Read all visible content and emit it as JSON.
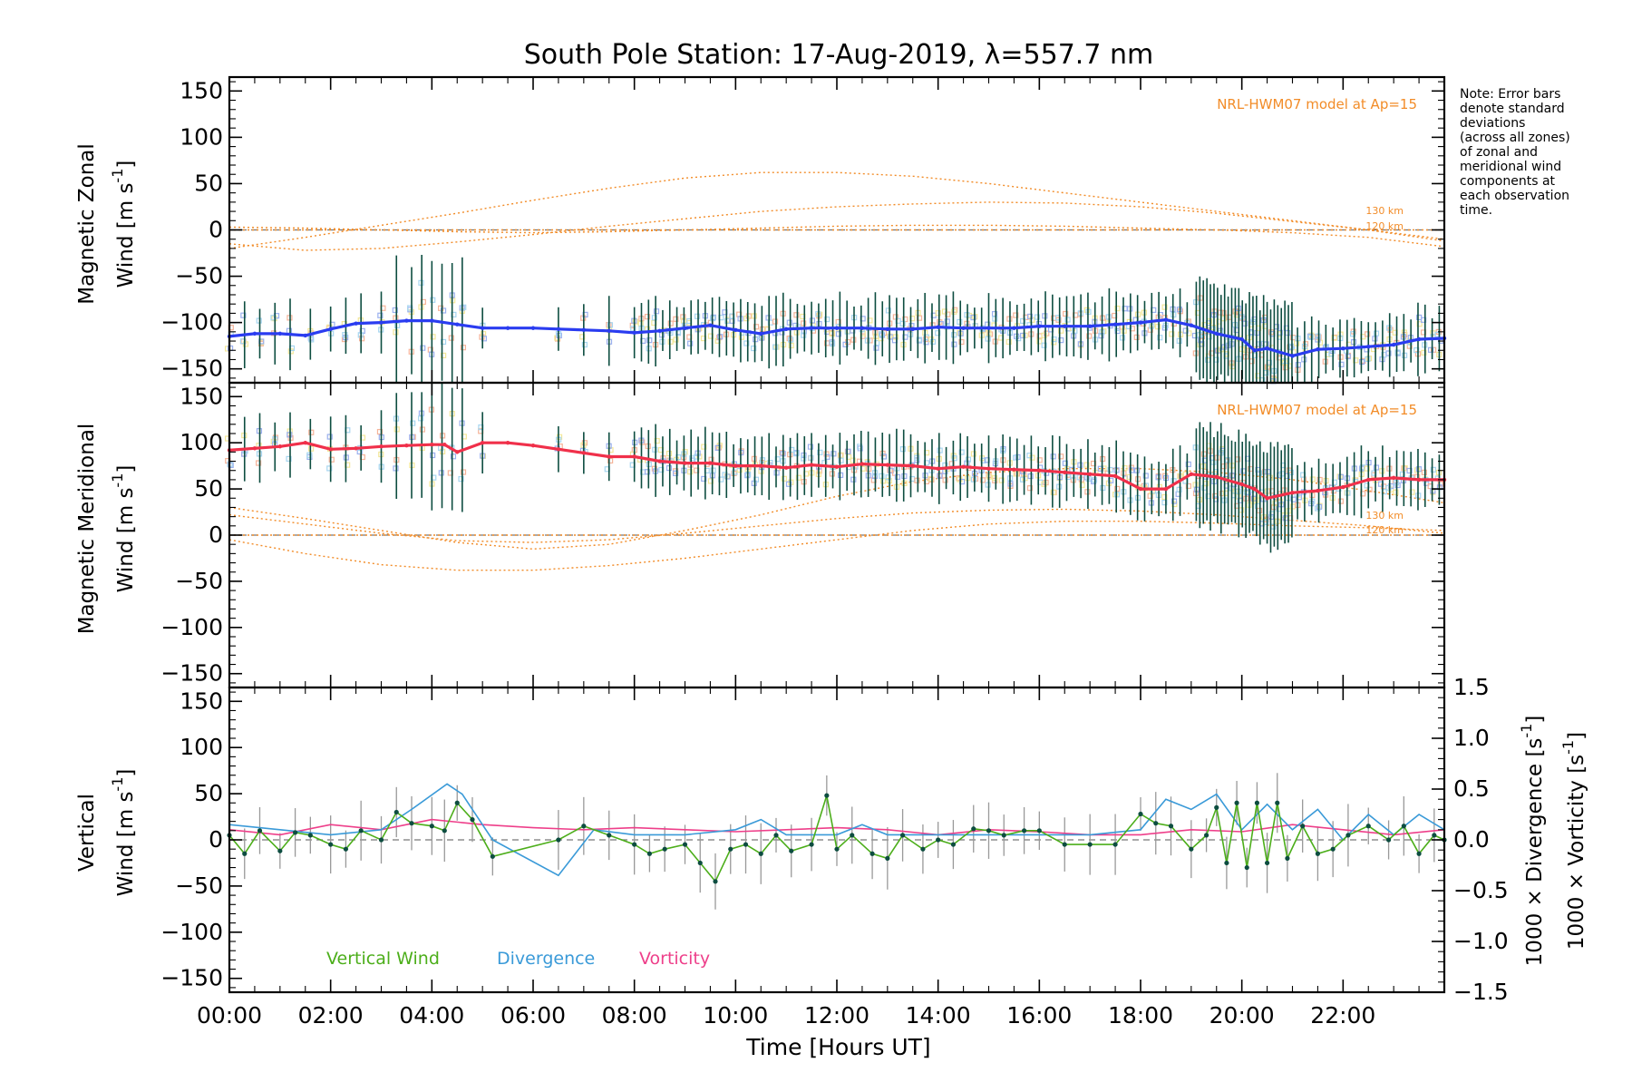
{
  "title": "South Pole Station: 17-Aug-2019, λ=557.7 nm",
  "note_lines": [
    "Note: Error bars",
    "denote standard",
    "deviations",
    "(across all zones)",
    "of zonal and",
    "meridional wind",
    "components at",
    "each observation",
    "time."
  ],
  "model_label": "NRL-HWM07 model at Ap=15",
  "altitude_labels": [
    "130 km",
    "120 km"
  ],
  "x_axis": {
    "label": "Time [Hours UT]",
    "ticks": [
      "00:00",
      "02:00",
      "04:00",
      "06:00",
      "08:00",
      "10:00",
      "12:00",
      "14:00",
      "16:00",
      "18:00",
      "20:00",
      "22:00"
    ],
    "range_hours": [
      0,
      24
    ]
  },
  "legend": {
    "vertical": "Vertical Wind",
    "divergence": "Divergence",
    "vorticity": "Vorticity"
  },
  "colors": {
    "zonal": "#2a3cf0",
    "meridional": "#f0304a",
    "vertical": "#4cae1a",
    "divergence": "#3a9ad8",
    "vorticity": "#ee3f8a",
    "model": "#f28c28",
    "error_bar": "#0d4d40"
  },
  "chart_data": [
    {
      "type": "line",
      "name": "zonal",
      "ylabel_line1": "Magnetic Zonal",
      "ylabel_line2": "Wind [m s",
      "ylabel_sup": "-1",
      "ylabel_close": "]",
      "yticks": [
        "150",
        "100",
        "50",
        "0",
        "−50",
        "−100",
        "−150"
      ],
      "ylim": [
        -165,
        165
      ],
      "series": {
        "x": [
          0,
          0.5,
          1,
          1.5,
          2,
          2.5,
          3,
          3.5,
          4,
          4.5,
          5,
          5.5,
          6,
          6.5,
          7,
          7.5,
          8,
          8.5,
          9,
          9.5,
          10,
          10.5,
          11,
          11.5,
          12,
          12.5,
          13,
          13.5,
          14,
          14.5,
          15,
          15.5,
          16,
          16.5,
          17,
          17.5,
          18,
          18.5,
          19,
          19.5,
          20,
          20.25,
          20.5,
          21,
          21.5,
          22,
          22.5,
          23,
          23.5,
          24
        ],
        "values": [
          -115,
          -112,
          -112,
          -114,
          -107,
          -101,
          -100,
          -98,
          -98,
          -102,
          -106,
          -106,
          -106,
          -107,
          -108,
          -109,
          -111,
          -109,
          -106,
          -103,
          -108,
          -112,
          -107,
          -106,
          -106,
          -106,
          -107,
          -107,
          -105,
          -106,
          -106,
          -106,
          -104,
          -104,
          -104,
          -102,
          -100,
          -97,
          -103,
          -112,
          -118,
          -130,
          -128,
          -136,
          -129,
          -128,
          -126,
          -124,
          -118,
          -117
        ]
      },
      "model_curves": [
        {
          "name": "a",
          "x": [
            0,
            1.5,
            3,
            4.5,
            6,
            7.5,
            9,
            10.5,
            12,
            13.5,
            15,
            16.5,
            18,
            19.5,
            21,
            22.5,
            24
          ],
          "values": [
            0,
            0,
            0,
            0,
            0,
            0,
            0,
            0,
            0,
            0,
            0,
            0,
            0,
            0,
            0,
            0,
            0
          ]
        },
        {
          "name": "b",
          "x": [
            0,
            1.5,
            3,
            4.5,
            6,
            7.5,
            9,
            10.5,
            12,
            13.5,
            15,
            16.5,
            18,
            19.5,
            21,
            22.5,
            24
          ],
          "values": [
            -20,
            -8,
            5,
            18,
            32,
            45,
            56,
            62,
            62,
            58,
            50,
            40,
            30,
            20,
            10,
            0,
            -12
          ]
        },
        {
          "name": "c",
          "x": [
            0,
            1.5,
            3,
            4.5,
            6,
            7.5,
            9,
            10.5,
            12,
            13.5,
            15,
            16.5,
            18,
            19.5,
            21,
            22.5,
            24
          ],
          "values": [
            -15,
            -22,
            -20,
            -13,
            -5,
            4,
            12,
            20,
            25,
            28,
            30,
            29,
            25,
            18,
            9,
            0,
            -10
          ]
        },
        {
          "name": "d",
          "x": [
            0,
            1.5,
            3,
            4.5,
            6,
            7.5,
            9,
            10.5,
            12,
            13.5,
            15,
            16.5,
            18,
            19.5,
            21,
            22.5,
            24
          ],
          "values": [
            3,
            2,
            0,
            -2,
            -3,
            -2,
            0,
            2,
            4,
            5,
            5,
            4,
            2,
            0,
            -3,
            -8,
            -18
          ]
        }
      ]
    },
    {
      "type": "line",
      "name": "meridional",
      "ylabel_line1": "Magnetic Meridional",
      "ylabel_line2": "Wind [m s",
      "ylabel_sup": "-1",
      "ylabel_close": "]",
      "yticks": [
        "150",
        "100",
        "50",
        "0",
        "−50",
        "−100",
        "−150"
      ],
      "ylim": [
        -165,
        165
      ],
      "series": {
        "x": [
          0,
          0.5,
          1,
          1.5,
          2,
          2.5,
          3,
          3.5,
          4,
          4.25,
          4.5,
          5,
          5.5,
          6,
          6.5,
          7,
          7.5,
          8,
          8.5,
          9,
          9.5,
          10,
          10.5,
          11,
          11.5,
          12,
          12.5,
          13,
          13.5,
          14,
          14.5,
          15,
          15.5,
          16,
          16.5,
          17,
          17.5,
          18,
          18.5,
          19,
          19.5,
          20,
          20.25,
          20.5,
          21,
          21.5,
          22,
          22.5,
          23,
          23.5,
          24
        ],
        "values": [
          92,
          94,
          96,
          100,
          93,
          94,
          96,
          97,
          98,
          98,
          90,
          100,
          100,
          97,
          93,
          89,
          85,
          85,
          80,
          78,
          78,
          75,
          75,
          73,
          76,
          74,
          77,
          76,
          75,
          72,
          74,
          72,
          71,
          70,
          68,
          66,
          64,
          50,
          50,
          66,
          63,
          55,
          50,
          40,
          46,
          48,
          52,
          60,
          62,
          60,
          60
        ]
      },
      "model_curves": [
        {
          "name": "a",
          "x": [
            0,
            1.5,
            3,
            4.5,
            6,
            7.5,
            9,
            10.5,
            12,
            13.5,
            15,
            16.5,
            18,
            19.5,
            21,
            22.5,
            24
          ],
          "values": [
            0,
            0,
            0,
            0,
            0,
            0,
            0,
            0,
            0,
            0,
            0,
            0,
            0,
            0,
            0,
            0,
            0
          ]
        },
        {
          "name": "b",
          "x": [
            0,
            1.5,
            3,
            4.5,
            6,
            7.5,
            9,
            10.5,
            12,
            13.5,
            15,
            16.5,
            18,
            19.5,
            21,
            22.5,
            24
          ],
          "values": [
            30,
            18,
            5,
            -8,
            -15,
            -10,
            5,
            22,
            42,
            58,
            68,
            72,
            72,
            68,
            60,
            48,
            35
          ]
        },
        {
          "name": "c",
          "x": [
            0,
            1.5,
            3,
            4.5,
            6,
            7.5,
            9,
            10.5,
            12,
            13.5,
            15,
            16.5,
            18,
            19.5,
            21,
            22.5,
            24
          ],
          "values": [
            -5,
            -20,
            -32,
            -38,
            -38,
            -33,
            -25,
            -15,
            -5,
            5,
            12,
            15,
            15,
            13,
            10,
            8,
            5
          ]
        },
        {
          "name": "d",
          "x": [
            0,
            1.5,
            3,
            4.5,
            6,
            7.5,
            9,
            10.5,
            12,
            13.5,
            15,
            16.5,
            18,
            19.5,
            21,
            22.5,
            24
          ],
          "values": [
            22,
            12,
            2,
            -6,
            -8,
            -5,
            2,
            10,
            18,
            24,
            27,
            28,
            26,
            22,
            16,
            10,
            2
          ]
        }
      ]
    },
    {
      "type": "line",
      "name": "vertical",
      "ylabel_left_line1": "Vertical",
      "ylabel_left_line2": "Wind [m s",
      "ylabel_left_sup": "-1",
      "ylabel_left_close": "]",
      "yticks": [
        "150",
        "100",
        "50",
        "0",
        "−50",
        "−100",
        "−150"
      ],
      "ylim": [
        -165,
        165
      ],
      "right_axis": {
        "ticks": [
          "1.5",
          "1.0",
          "0.5",
          "0.0",
          "−0.5",
          "−1.0",
          "−1.5"
        ],
        "range": [
          -1.5,
          1.5
        ],
        "label_div": "1000 × Divergence [s",
        "label_vort": "1000 × Vorticity [s",
        "sup": "-1",
        "close": "]"
      },
      "series": [
        {
          "name": "Vertical Wind",
          "x": [
            0,
            0.3,
            0.6,
            1,
            1.3,
            1.6,
            2,
            2.3,
            2.6,
            3,
            3.3,
            3.6,
            4,
            4.25,
            4.5,
            4.8,
            5.2,
            6.5,
            7,
            7.5,
            8,
            8.3,
            8.6,
            9,
            9.3,
            9.6,
            9.9,
            10.2,
            10.5,
            10.8,
            11.1,
            11.5,
            11.8,
            12,
            12.3,
            12.7,
            13,
            13.3,
            13.7,
            14,
            14.3,
            14.7,
            15,
            15.3,
            15.7,
            16,
            16.5,
            17,
            17.5,
            18,
            18.3,
            18.6,
            19,
            19.3,
            19.5,
            19.7,
            19.9,
            20.1,
            20.3,
            20.5,
            20.7,
            20.9,
            21.2,
            21.5,
            21.8,
            22.1,
            22.5,
            22.9,
            23.2,
            23.5,
            23.8,
            24
          ],
          "values": [
            5,
            -15,
            10,
            -12,
            8,
            5,
            -5,
            -10,
            10,
            0,
            30,
            18,
            15,
            10,
            40,
            22,
            -18,
            0,
            15,
            5,
            -5,
            -15,
            -10,
            -5,
            -25,
            -45,
            -10,
            -5,
            -15,
            5,
            -12,
            -5,
            48,
            -10,
            5,
            -15,
            -20,
            5,
            -10,
            0,
            -5,
            12,
            10,
            5,
            10,
            10,
            -5,
            -5,
            -5,
            28,
            18,
            15,
            -10,
            5,
            35,
            -25,
            40,
            -30,
            40,
            -25,
            40,
            -20,
            15,
            -15,
            -10,
            5,
            15,
            0,
            15,
            -15,
            5,
            0
          ]
        },
        {
          "name": "Divergence",
          "x": [
            0,
            1,
            2,
            3,
            3.6,
            4.3,
            4.6,
            5.2,
            6.5,
            7.2,
            8,
            9,
            10,
            10.5,
            11,
            12,
            12.5,
            13,
            14,
            15,
            16,
            17,
            18,
            18.5,
            19,
            19.5,
            20,
            20.5,
            21,
            21.5,
            22,
            22.5,
            23,
            23.5,
            24
          ],
          "values": [
            0.15,
            0.1,
            0.05,
            0.1,
            0.3,
            0.55,
            0.45,
            0.0,
            -0.35,
            0.1,
            0.05,
            0.05,
            0.1,
            0.2,
            0.05,
            0.05,
            0.15,
            0.05,
            0.05,
            0.05,
            0.05,
            0.05,
            0.1,
            0.4,
            0.3,
            0.45,
            0.1,
            0.35,
            0.1,
            0.3,
            0.0,
            0.25,
            0.05,
            0.25,
            0.1
          ]
        },
        {
          "name": "Vorticity",
          "x": [
            0,
            1,
            2,
            3,
            4,
            5,
            6,
            7,
            8,
            9,
            10,
            11,
            12,
            13,
            14,
            15,
            16,
            17,
            18,
            19,
            20,
            21,
            22,
            23,
            24
          ],
          "values": [
            0.1,
            0.05,
            0.15,
            0.1,
            0.2,
            0.15,
            0.12,
            0.1,
            0.12,
            0.1,
            0.08,
            0.1,
            0.12,
            0.1,
            0.05,
            0.1,
            0.08,
            0.05,
            0.05,
            0.1,
            0.08,
            0.15,
            0.1,
            0.05,
            0.1
          ]
        }
      ]
    }
  ]
}
